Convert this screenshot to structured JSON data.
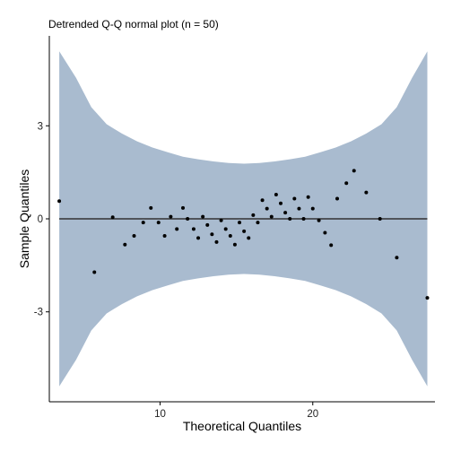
{
  "chart_data": {
    "type": "scatter",
    "title": "Detrended Q-Q normal plot (n = 50)",
    "xlabel": "Theoretical Quantiles",
    "ylabel": "Sample Quantiles",
    "xlim": [
      2.75,
      28.0
    ],
    "ylim": [
      -5.9,
      5.9
    ],
    "x_ticks": [
      10,
      20
    ],
    "y_ticks": [
      -3,
      0,
      3
    ],
    "reference_line_y": 0,
    "grid": false,
    "colors": {
      "band": "#a9bbcf",
      "points": "#000000",
      "reference_line": "#333333",
      "axes": "#000000"
    },
    "confidence_band": {
      "x": [
        3.4,
        4.5,
        5.5,
        6.5,
        7.5,
        8.5,
        9.5,
        10.5,
        11.5,
        12.5,
        13.5,
        14.5,
        15.5,
        16.5,
        17.5,
        18.5,
        19.5,
        20.5,
        21.5,
        22.5,
        23.5,
        24.5,
        25.5,
        26.5,
        27.5
      ],
      "upper": [
        5.4,
        4.55,
        3.6,
        3.05,
        2.75,
        2.5,
        2.3,
        2.15,
        2.0,
        1.92,
        1.85,
        1.8,
        1.78,
        1.8,
        1.85,
        1.92,
        2.0,
        2.15,
        2.3,
        2.5,
        2.75,
        3.05,
        3.6,
        4.55,
        5.4
      ],
      "lower": [
        -5.4,
        -4.55,
        -3.6,
        -3.05,
        -2.75,
        -2.5,
        -2.3,
        -2.15,
        -2.0,
        -1.92,
        -1.85,
        -1.8,
        -1.78,
        -1.8,
        -1.85,
        -1.92,
        -2.0,
        -2.15,
        -2.3,
        -2.5,
        -2.75,
        -3.05,
        -3.6,
        -4.55,
        -5.4
      ]
    },
    "points": [
      {
        "x": 3.4,
        "y": 0.57
      },
      {
        "x": 5.7,
        "y": -1.72
      },
      {
        "x": 6.9,
        "y": 0.05
      },
      {
        "x": 7.7,
        "y": -0.83
      },
      {
        "x": 8.3,
        "y": -0.55
      },
      {
        "x": 8.9,
        "y": -0.12
      },
      {
        "x": 9.4,
        "y": 0.35
      },
      {
        "x": 9.9,
        "y": -0.12
      },
      {
        "x": 10.3,
        "y": -0.55
      },
      {
        "x": 10.7,
        "y": 0.07
      },
      {
        "x": 11.1,
        "y": -0.33
      },
      {
        "x": 11.5,
        "y": 0.35
      },
      {
        "x": 11.8,
        "y": 0.0
      },
      {
        "x": 12.2,
        "y": -0.33
      },
      {
        "x": 12.5,
        "y": -0.62
      },
      {
        "x": 12.8,
        "y": 0.07
      },
      {
        "x": 13.1,
        "y": -0.2
      },
      {
        "x": 13.4,
        "y": -0.5
      },
      {
        "x": 13.7,
        "y": -0.75
      },
      {
        "x": 14.0,
        "y": -0.05
      },
      {
        "x": 14.3,
        "y": -0.33
      },
      {
        "x": 14.6,
        "y": -0.55
      },
      {
        "x": 14.9,
        "y": -0.83
      },
      {
        "x": 15.2,
        "y": -0.12
      },
      {
        "x": 15.5,
        "y": -0.4
      },
      {
        "x": 15.8,
        "y": -0.62
      },
      {
        "x": 16.1,
        "y": 0.12
      },
      {
        "x": 16.4,
        "y": -0.12
      },
      {
        "x": 16.7,
        "y": 0.6
      },
      {
        "x": 17.0,
        "y": 0.33
      },
      {
        "x": 17.3,
        "y": 0.07
      },
      {
        "x": 17.6,
        "y": 0.78
      },
      {
        "x": 17.9,
        "y": 0.5
      },
      {
        "x": 18.2,
        "y": 0.2
      },
      {
        "x": 18.5,
        "y": 0.0
      },
      {
        "x": 18.8,
        "y": 0.65
      },
      {
        "x": 19.1,
        "y": 0.33
      },
      {
        "x": 19.4,
        "y": 0.0
      },
      {
        "x": 19.7,
        "y": 0.7
      },
      {
        "x": 20.0,
        "y": 0.33
      },
      {
        "x": 20.4,
        "y": -0.05
      },
      {
        "x": 20.8,
        "y": -0.45
      },
      {
        "x": 21.2,
        "y": -0.85
      },
      {
        "x": 21.6,
        "y": 0.65
      },
      {
        "x": 22.2,
        "y": 1.15
      },
      {
        "x": 22.7,
        "y": 1.55
      },
      {
        "x": 23.5,
        "y": 0.85
      },
      {
        "x": 24.4,
        "y": 0.0
      },
      {
        "x": 25.5,
        "y": -1.25
      },
      {
        "x": 27.5,
        "y": -2.55
      }
    ]
  }
}
